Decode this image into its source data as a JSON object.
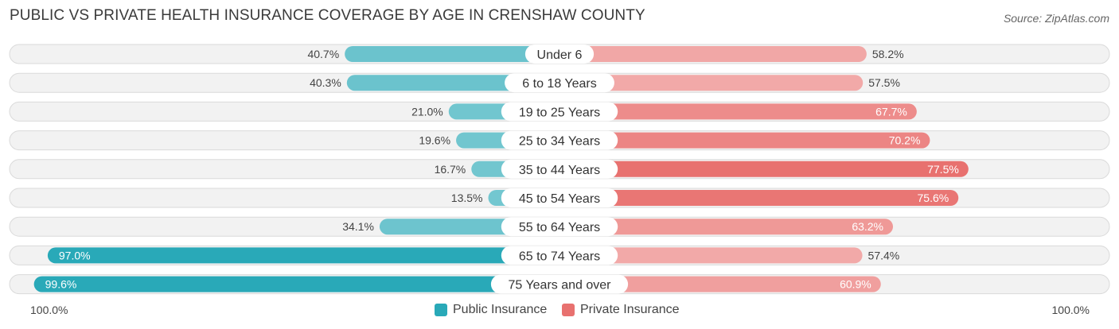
{
  "title": "PUBLIC VS PRIVATE HEALTH INSURANCE COVERAGE BY AGE IN CRENSHAW COUNTY",
  "source": "Source: ZipAtlas.com",
  "colors": {
    "public_dark": "#29a9b8",
    "public_light": "#74c7d0",
    "private_dark": "#e8716f",
    "private_light": "#f2aaa9"
  },
  "chart_data": {
    "type": "bar",
    "orientation": "horizontal-diverging",
    "title": "PUBLIC VS PRIVATE HEALTH INSURANCE COVERAGE BY AGE IN CRENSHAW COUNTY",
    "categories": [
      "Under 6",
      "6 to 18 Years",
      "19 to 25 Years",
      "25 to 34 Years",
      "35 to 44 Years",
      "45 to 54 Years",
      "55 to 64 Years",
      "65 to 74 Years",
      "75 Years and over"
    ],
    "series": [
      {
        "name": "Public Insurance",
        "values": [
          40.7,
          40.3,
          21.0,
          19.6,
          16.7,
          13.5,
          34.1,
          97.0,
          99.6
        ],
        "labels": [
          "40.7%",
          "40.3%",
          "21.0%",
          "19.6%",
          "16.7%",
          "13.5%",
          "34.1%",
          "97.0%",
          "99.6%"
        ]
      },
      {
        "name": "Private Insurance",
        "values": [
          58.2,
          57.5,
          67.7,
          70.2,
          77.5,
          75.6,
          63.2,
          57.4,
          60.9
        ],
        "labels": [
          "58.2%",
          "57.5%",
          "67.7%",
          "70.2%",
          "77.5%",
          "75.6%",
          "63.2%",
          "57.4%",
          "60.9%"
        ]
      }
    ],
    "xlim": [
      0,
      100
    ],
    "axis_left_label": "100.0%",
    "axis_right_label": "100.0%",
    "legend_position": "bottom-center"
  },
  "legend": {
    "public_label": "Public Insurance",
    "private_label": "Private Insurance"
  }
}
